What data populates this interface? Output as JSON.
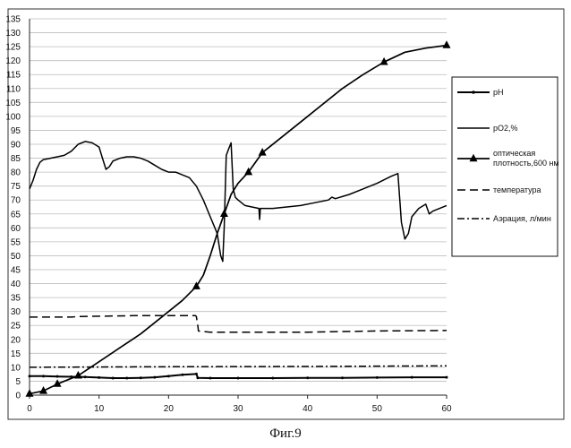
{
  "caption": "Фиг.9",
  "chart_data": {
    "type": "line",
    "title": "",
    "xlabel": "",
    "ylabel": "",
    "xlim": [
      0,
      60
    ],
    "ylim": [
      0,
      135
    ],
    "x_ticks": [
      0,
      10,
      20,
      30,
      40,
      50,
      60
    ],
    "y_ticks": [
      0,
      5,
      10,
      15,
      20,
      25,
      30,
      35,
      40,
      45,
      50,
      55,
      60,
      65,
      70,
      75,
      80,
      85,
      90,
      95,
      100,
      105,
      110,
      115,
      120,
      125,
      130,
      135
    ],
    "grid": "horizontal",
    "legend_position": "right",
    "series": [
      {
        "name": "pH",
        "style": "solid-small-markers",
        "color": "#000000",
        "points": [
          [
            0,
            6.8
          ],
          [
            2,
            6.8
          ],
          [
            4,
            6.7
          ],
          [
            6,
            6.6
          ],
          [
            8,
            6.5
          ],
          [
            10,
            6.3
          ],
          [
            12,
            6.1
          ],
          [
            14,
            6.1
          ],
          [
            16,
            6.2
          ],
          [
            18,
            6.4
          ],
          [
            20,
            6.8
          ],
          [
            22,
            7.3
          ],
          [
            24,
            7.6
          ],
          [
            24.2,
            6.2
          ],
          [
            26,
            6.1
          ],
          [
            30,
            6.1
          ],
          [
            35,
            6.1
          ],
          [
            40,
            6.2
          ],
          [
            45,
            6.2
          ],
          [
            50,
            6.3
          ],
          [
            55,
            6.4
          ],
          [
            60,
            6.4
          ]
        ]
      },
      {
        "name": "pO2,%",
        "style": "solid",
        "color": "#000000",
        "points": [
          [
            0,
            74
          ],
          [
            0.5,
            77
          ],
          [
            1,
            81
          ],
          [
            1.5,
            83.5
          ],
          [
            2,
            84.5
          ],
          [
            3,
            85
          ],
          [
            4,
            85.5
          ],
          [
            5,
            86
          ],
          [
            6,
            87.5
          ],
          [
            7,
            90
          ],
          [
            8,
            91
          ],
          [
            9,
            90.5
          ],
          [
            10,
            89
          ],
          [
            10.5,
            85
          ],
          [
            11,
            81
          ],
          [
            11.5,
            82
          ],
          [
            12,
            84
          ],
          [
            13,
            85
          ],
          [
            14,
            85.5
          ],
          [
            15,
            85.5
          ],
          [
            16,
            85
          ],
          [
            17,
            84
          ],
          [
            18,
            82.5
          ],
          [
            19,
            81
          ],
          [
            20,
            80
          ],
          [
            21,
            80
          ],
          [
            22,
            79
          ],
          [
            23,
            78
          ],
          [
            24,
            75
          ],
          [
            25,
            70
          ],
          [
            26,
            64
          ],
          [
            26.5,
            61
          ],
          [
            27,
            58
          ],
          [
            27.5,
            50
          ],
          [
            27.8,
            48
          ],
          [
            28,
            60
          ],
          [
            28.3,
            86
          ],
          [
            28.6,
            88
          ],
          [
            29,
            90.5
          ],
          [
            29.3,
            74
          ],
          [
            29.6,
            71
          ],
          [
            30,
            70
          ],
          [
            31,
            68
          ],
          [
            32,
            67.5
          ],
          [
            33,
            67
          ],
          [
            33.1,
            63
          ],
          [
            33.2,
            67
          ],
          [
            35,
            67
          ],
          [
            37,
            67.5
          ],
          [
            39,
            68
          ],
          [
            41,
            69
          ],
          [
            43,
            70
          ],
          [
            43.5,
            71
          ],
          [
            44,
            70.5
          ],
          [
            46,
            72
          ],
          [
            48,
            74
          ],
          [
            50,
            76
          ],
          [
            52,
            78.5
          ],
          [
            53,
            79.5
          ],
          [
            53.5,
            62
          ],
          [
            54,
            56
          ],
          [
            54.5,
            58
          ],
          [
            55,
            64
          ],
          [
            56,
            67
          ],
          [
            57,
            68.5
          ],
          [
            57.5,
            65
          ],
          [
            58,
            66
          ],
          [
            59,
            67
          ],
          [
            60,
            68
          ]
        ]
      },
      {
        "name": "оптическая плотность,600 нм",
        "style": "solid-triangle-markers",
        "color": "#000000",
        "marker_x": [
          0,
          2,
          4,
          7,
          24,
          28,
          31.5,
          33.5,
          51,
          60
        ],
        "points": [
          [
            0,
            0.5
          ],
          [
            2,
            1.5
          ],
          [
            4,
            4
          ],
          [
            7,
            7
          ],
          [
            10,
            12
          ],
          [
            13,
            17
          ],
          [
            16,
            22
          ],
          [
            19,
            28
          ],
          [
            22,
            34
          ],
          [
            24,
            39
          ],
          [
            25,
            43
          ],
          [
            26,
            50
          ],
          [
            27,
            58
          ],
          [
            28,
            65
          ],
          [
            29,
            72
          ],
          [
            30,
            76
          ],
          [
            31.5,
            80
          ],
          [
            33.5,
            87
          ],
          [
            36,
            92
          ],
          [
            40,
            100
          ],
          [
            45,
            110
          ],
          [
            48,
            115
          ],
          [
            51,
            119.5
          ],
          [
            54,
            123
          ],
          [
            57,
            124.5
          ],
          [
            60,
            125.5
          ]
        ]
      },
      {
        "name": "температура",
        "style": "dashed",
        "color": "#000000",
        "points": [
          [
            0,
            28
          ],
          [
            6,
            28
          ],
          [
            7,
            28.2
          ],
          [
            15,
            28.5
          ],
          [
            23.9,
            28.5
          ],
          [
            24,
            28.2
          ],
          [
            24.2,
            25
          ],
          [
            24.3,
            23
          ],
          [
            26,
            22.6
          ],
          [
            30,
            22.6
          ],
          [
            40,
            22.6
          ],
          [
            50,
            23
          ],
          [
            60,
            23.2
          ]
        ]
      },
      {
        "name": "Аэрация, л/мин",
        "style": "dash-dot",
        "color": "#000000",
        "points": [
          [
            0,
            10
          ],
          [
            20,
            10.2
          ],
          [
            40,
            10.3
          ],
          [
            60,
            10.5
          ]
        ]
      }
    ]
  }
}
